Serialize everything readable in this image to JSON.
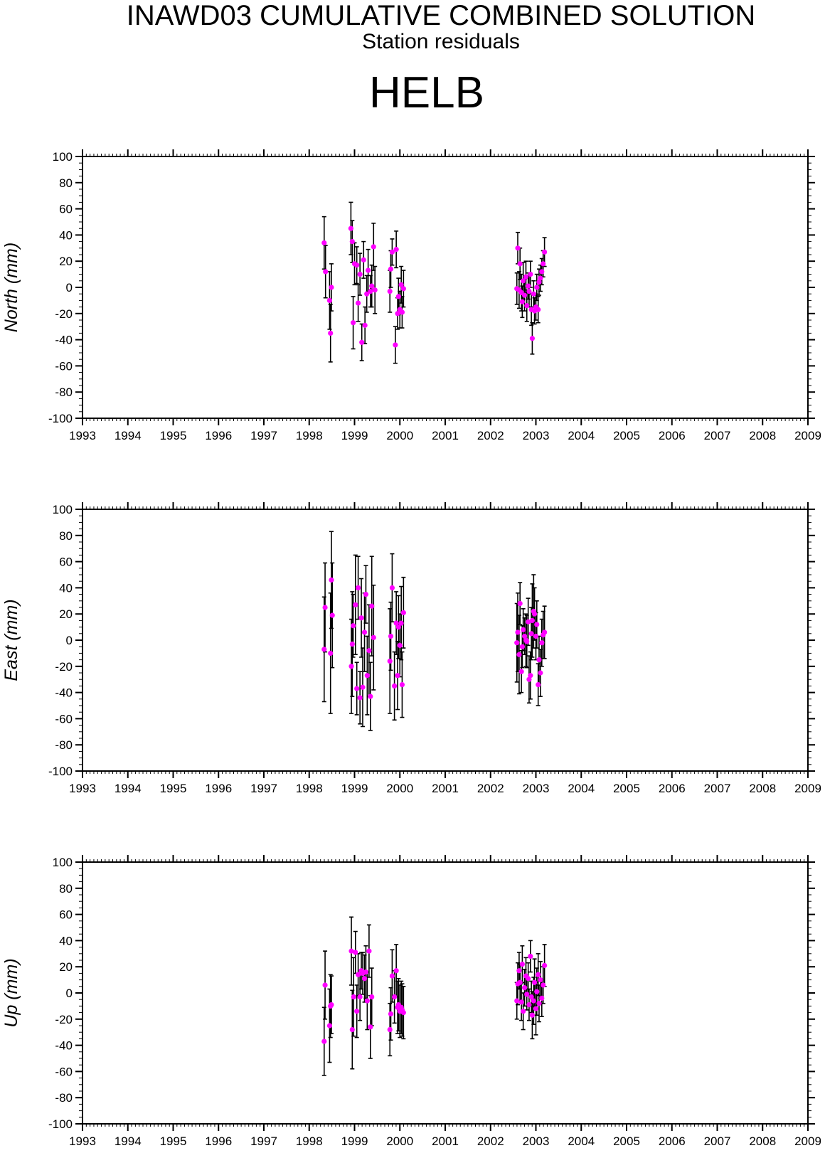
{
  "header": {
    "title": "INAWD03 CUMULATIVE COMBINED SOLUTION",
    "subtitle": "Station residuals",
    "station": "HELB"
  },
  "colors": {
    "point": "#ff00ff",
    "errorbar": "#000000",
    "axis": "#000000",
    "background": "#ffffff"
  },
  "chart_data": [
    {
      "type": "scatter",
      "ylabel": "North (mm)",
      "xlim": [
        1993,
        2009
      ],
      "ylim": [
        -100,
        100
      ],
      "x_ticks": [
        "1993",
        "1994",
        "1995",
        "1996",
        "1997",
        "1998",
        "1999",
        "2000",
        "2001",
        "2002",
        "2003",
        "2004",
        "2005",
        "2006",
        "2007",
        "2008",
        "2009"
      ],
      "y_ticks": [
        "100",
        "80",
        "60",
        "40",
        "20",
        "0",
        "-20",
        "-40",
        "-60",
        "-80",
        "-100"
      ],
      "grid": false,
      "points": [
        {
          "x": 1998.33,
          "y": 34,
          "err": 20
        },
        {
          "x": 1998.36,
          "y": 12,
          "err": 20
        },
        {
          "x": 1998.45,
          "y": -10,
          "err": 22
        },
        {
          "x": 1998.47,
          "y": -35,
          "err": 22
        },
        {
          "x": 1998.49,
          "y": 0,
          "err": 18
        },
        {
          "x": 1998.92,
          "y": 45,
          "err": 20
        },
        {
          "x": 1998.95,
          "y": 35,
          "err": 16
        },
        {
          "x": 1998.97,
          "y": -27,
          "err": 20
        },
        {
          "x": 1999.0,
          "y": 18,
          "err": 16
        },
        {
          "x": 1999.05,
          "y": 17,
          "err": 14
        },
        {
          "x": 1999.08,
          "y": -12,
          "err": 14
        },
        {
          "x": 1999.12,
          "y": 10,
          "err": 16
        },
        {
          "x": 1999.16,
          "y": -42,
          "err": 14
        },
        {
          "x": 1999.2,
          "y": 21,
          "err": 14
        },
        {
          "x": 1999.23,
          "y": -29,
          "err": 14
        },
        {
          "x": 1999.27,
          "y": -5,
          "err": 14
        },
        {
          "x": 1999.3,
          "y": 13,
          "err": 16
        },
        {
          "x": 1999.35,
          "y": -3,
          "err": 12
        },
        {
          "x": 1999.38,
          "y": 1,
          "err": 16
        },
        {
          "x": 1999.42,
          "y": 31,
          "err": 18
        },
        {
          "x": 1999.45,
          "y": -2,
          "err": 18
        },
        {
          "x": 1999.78,
          "y": -3,
          "err": 16
        },
        {
          "x": 1999.8,
          "y": 14,
          "err": 14
        },
        {
          "x": 1999.83,
          "y": 27,
          "err": 10
        },
        {
          "x": 1999.9,
          "y": -44,
          "err": 14
        },
        {
          "x": 1999.92,
          "y": 29,
          "err": 14
        },
        {
          "x": 1999.95,
          "y": -20,
          "err": 12
        },
        {
          "x": 1999.97,
          "y": -7,
          "err": 14
        },
        {
          "x": 2000.0,
          "y": -17,
          "err": 14
        },
        {
          "x": 2000.03,
          "y": 2,
          "err": 14
        },
        {
          "x": 2000.05,
          "y": -19,
          "err": 12
        },
        {
          "x": 2000.08,
          "y": -1,
          "err": 14
        },
        {
          "x": 2002.58,
          "y": -1,
          "err": 12
        },
        {
          "x": 2002.6,
          "y": 30,
          "err": 12
        },
        {
          "x": 2002.63,
          "y": -2,
          "err": 14
        },
        {
          "x": 2002.65,
          "y": 18,
          "err": 12
        },
        {
          "x": 2002.68,
          "y": -4,
          "err": 14
        },
        {
          "x": 2002.7,
          "y": -11,
          "err": 12
        },
        {
          "x": 2002.72,
          "y": 5,
          "err": 14
        },
        {
          "x": 2002.75,
          "y": -6,
          "err": 12
        },
        {
          "x": 2002.78,
          "y": 8,
          "err": 12
        },
        {
          "x": 2002.8,
          "y": -14,
          "err": 12
        },
        {
          "x": 2002.83,
          "y": 1,
          "err": 10
        },
        {
          "x": 2002.85,
          "y": -3,
          "err": 12
        },
        {
          "x": 2002.88,
          "y": 10,
          "err": 10
        },
        {
          "x": 2002.9,
          "y": -17,
          "err": 12
        },
        {
          "x": 2002.92,
          "y": -39,
          "err": 12
        },
        {
          "x": 2002.95,
          "y": -5,
          "err": 10
        },
        {
          "x": 2002.97,
          "y": -18,
          "err": 10
        },
        {
          "x": 2003.0,
          "y": -15,
          "err": 10
        },
        {
          "x": 2003.02,
          "y": 0,
          "err": 10
        },
        {
          "x": 2003.05,
          "y": -17,
          "err": 10
        },
        {
          "x": 2003.07,
          "y": 4,
          "err": 10
        },
        {
          "x": 2003.1,
          "y": 7,
          "err": 10
        },
        {
          "x": 2003.13,
          "y": 12,
          "err": 10
        },
        {
          "x": 2003.16,
          "y": 18,
          "err": 10
        },
        {
          "x": 2003.19,
          "y": 27,
          "err": 11
        }
      ]
    },
    {
      "type": "scatter",
      "ylabel": "East (mm)",
      "xlim": [
        1993,
        2009
      ],
      "ylim": [
        -100,
        100
      ],
      "x_ticks": [
        "1993",
        "1994",
        "1995",
        "1996",
        "1997",
        "1998",
        "1999",
        "2000",
        "2001",
        "2002",
        "2003",
        "2004",
        "2005",
        "2006",
        "2007",
        "2008",
        "2009"
      ],
      "y_ticks": [
        "100",
        "80",
        "60",
        "40",
        "20",
        "0",
        "-20",
        "-40",
        "-60",
        "-80",
        "-100"
      ],
      "grid": false,
      "points": [
        {
          "x": 1998.33,
          "y": -7,
          "err": 40
        },
        {
          "x": 1998.35,
          "y": 25,
          "err": 34
        },
        {
          "x": 1998.47,
          "y": -10,
          "err": 46
        },
        {
          "x": 1998.49,
          "y": 46,
          "err": 37
        },
        {
          "x": 1998.51,
          "y": 19,
          "err": 40
        },
        {
          "x": 1998.93,
          "y": -20,
          "err": 36
        },
        {
          "x": 1998.95,
          "y": -3,
          "err": 40
        },
        {
          "x": 1998.97,
          "y": 11,
          "err": 24
        },
        {
          "x": 1999.02,
          "y": 27,
          "err": 38
        },
        {
          "x": 1999.05,
          "y": -37,
          "err": 20
        },
        {
          "x": 1999.08,
          "y": 40,
          "err": 24
        },
        {
          "x": 1999.12,
          "y": -44,
          "err": 20
        },
        {
          "x": 1999.15,
          "y": 17,
          "err": 30
        },
        {
          "x": 1999.18,
          "y": -36,
          "err": 30
        },
        {
          "x": 1999.22,
          "y": 6,
          "err": 30
        },
        {
          "x": 1999.25,
          "y": 35,
          "err": 22
        },
        {
          "x": 1999.28,
          "y": -27,
          "err": 30
        },
        {
          "x": 1999.32,
          "y": -8,
          "err": 35
        },
        {
          "x": 1999.35,
          "y": -43,
          "err": 26
        },
        {
          "x": 1999.38,
          "y": 26,
          "err": 38
        },
        {
          "x": 1999.42,
          "y": 2,
          "err": 40
        },
        {
          "x": 1999.78,
          "y": -16,
          "err": 40
        },
        {
          "x": 1999.8,
          "y": 3,
          "err": 26
        },
        {
          "x": 1999.83,
          "y": 40,
          "err": 26
        },
        {
          "x": 1999.88,
          "y": -35,
          "err": 26
        },
        {
          "x": 1999.92,
          "y": 13,
          "err": 24
        },
        {
          "x": 1999.95,
          "y": -27,
          "err": 26
        },
        {
          "x": 1999.97,
          "y": 10,
          "err": 24
        },
        {
          "x": 2000.0,
          "y": -4,
          "err": 24
        },
        {
          "x": 2000.03,
          "y": 13,
          "err": 28
        },
        {
          "x": 2000.05,
          "y": -34,
          "err": 25
        },
        {
          "x": 2000.08,
          "y": 21,
          "err": 27
        },
        {
          "x": 2002.58,
          "y": -2,
          "err": 30
        },
        {
          "x": 2002.6,
          "y": 6,
          "err": 30
        },
        {
          "x": 2002.63,
          "y": -11,
          "err": 30
        },
        {
          "x": 2002.65,
          "y": 28,
          "err": 16
        },
        {
          "x": 2002.68,
          "y": -24,
          "err": 16
        },
        {
          "x": 2002.7,
          "y": -5,
          "err": 16
        },
        {
          "x": 2002.72,
          "y": 8,
          "err": 16
        },
        {
          "x": 2002.75,
          "y": 3,
          "err": 14
        },
        {
          "x": 2002.78,
          "y": 0,
          "err": 20
        },
        {
          "x": 2002.8,
          "y": -1,
          "err": 20
        },
        {
          "x": 2002.83,
          "y": 14,
          "err": 18
        },
        {
          "x": 2002.85,
          "y": -30,
          "err": 18
        },
        {
          "x": 2002.88,
          "y": -27,
          "err": 18
        },
        {
          "x": 2002.9,
          "y": 5,
          "err": 20
        },
        {
          "x": 2002.92,
          "y": 15,
          "err": 28
        },
        {
          "x": 2002.95,
          "y": 22,
          "err": 28
        },
        {
          "x": 2002.97,
          "y": 20,
          "err": 20
        },
        {
          "x": 2003.0,
          "y": 3,
          "err": 18
        },
        {
          "x": 2003.02,
          "y": 12,
          "err": 18
        },
        {
          "x": 2003.05,
          "y": -34,
          "err": 16
        },
        {
          "x": 2003.07,
          "y": -15,
          "err": 18
        },
        {
          "x": 2003.1,
          "y": -25,
          "err": 18
        },
        {
          "x": 2003.13,
          "y": -2,
          "err": 18
        },
        {
          "x": 2003.16,
          "y": 4,
          "err": 18
        },
        {
          "x": 2003.19,
          "y": 6,
          "err": 20
        }
      ]
    },
    {
      "type": "scatter",
      "ylabel": "Up (mm)",
      "xlim": [
        1993,
        2009
      ],
      "ylim": [
        -100,
        100
      ],
      "x_ticks": [
        "1993",
        "1994",
        "1995",
        "1996",
        "1997",
        "1998",
        "1999",
        "2000",
        "2001",
        "2002",
        "2003",
        "2004",
        "2005",
        "2006",
        "2007",
        "2008",
        "2009"
      ],
      "y_ticks": [
        "100",
        "80",
        "60",
        "40",
        "20",
        "0",
        "-20",
        "-40",
        "-60",
        "-80",
        "-100"
      ],
      "grid": false,
      "points": [
        {
          "x": 1998.33,
          "y": -37,
          "err": 26
        },
        {
          "x": 1998.35,
          "y": 6,
          "err": 26
        },
        {
          "x": 1998.45,
          "y": -25,
          "err": 28
        },
        {
          "x": 1998.47,
          "y": -10,
          "err": 24
        },
        {
          "x": 1998.49,
          "y": -9,
          "err": 22
        },
        {
          "x": 1998.93,
          "y": 32,
          "err": 26
        },
        {
          "x": 1998.95,
          "y": -28,
          "err": 30
        },
        {
          "x": 1998.98,
          "y": -3,
          "err": 30
        },
        {
          "x": 1999.02,
          "y": 31,
          "err": 16
        },
        {
          "x": 1999.05,
          "y": -14,
          "err": 20
        },
        {
          "x": 1999.08,
          "y": 14,
          "err": 16
        },
        {
          "x": 1999.12,
          "y": -3,
          "err": 18
        },
        {
          "x": 1999.15,
          "y": 17,
          "err": 14
        },
        {
          "x": 1999.18,
          "y": 15,
          "err": 16
        },
        {
          "x": 1999.22,
          "y": 11,
          "err": 18
        },
        {
          "x": 1999.25,
          "y": 16,
          "err": 20
        },
        {
          "x": 1999.28,
          "y": -6,
          "err": 22
        },
        {
          "x": 1999.32,
          "y": 32,
          "err": 20
        },
        {
          "x": 1999.35,
          "y": -26,
          "err": 24
        },
        {
          "x": 1999.38,
          "y": -3,
          "err": 22
        },
        {
          "x": 1999.78,
          "y": -28,
          "err": 20
        },
        {
          "x": 1999.8,
          "y": -16,
          "err": 20
        },
        {
          "x": 1999.83,
          "y": 13,
          "err": 20
        },
        {
          "x": 1999.88,
          "y": -3,
          "err": 20
        },
        {
          "x": 1999.92,
          "y": 17,
          "err": 20
        },
        {
          "x": 1999.95,
          "y": -11,
          "err": 20
        },
        {
          "x": 1999.97,
          "y": -9,
          "err": 20
        },
        {
          "x": 2000.0,
          "y": -14,
          "err": 20
        },
        {
          "x": 2000.03,
          "y": -11,
          "err": 20
        },
        {
          "x": 2000.05,
          "y": -13,
          "err": 20
        },
        {
          "x": 2000.08,
          "y": -15,
          "err": 20
        },
        {
          "x": 2002.58,
          "y": -6,
          "err": 14
        },
        {
          "x": 2002.6,
          "y": 7,
          "err": 16
        },
        {
          "x": 2002.63,
          "y": 17,
          "err": 14
        },
        {
          "x": 2002.65,
          "y": 8,
          "err": 14
        },
        {
          "x": 2002.68,
          "y": -7,
          "err": 14
        },
        {
          "x": 2002.7,
          "y": 22,
          "err": 14
        },
        {
          "x": 2002.72,
          "y": -14,
          "err": 14
        },
        {
          "x": 2002.75,
          "y": 4,
          "err": 14
        },
        {
          "x": 2002.78,
          "y": 13,
          "err": 14
        },
        {
          "x": 2002.8,
          "y": -1,
          "err": 12
        },
        {
          "x": 2002.83,
          "y": 11,
          "err": 12
        },
        {
          "x": 2002.85,
          "y": -9,
          "err": 12
        },
        {
          "x": 2002.88,
          "y": 28,
          "err": 12
        },
        {
          "x": 2002.9,
          "y": -3,
          "err": 12
        },
        {
          "x": 2002.92,
          "y": -17,
          "err": 18
        },
        {
          "x": 2002.95,
          "y": -6,
          "err": 18
        },
        {
          "x": 2002.97,
          "y": 8,
          "err": 18
        },
        {
          "x": 2003.0,
          "y": -12,
          "err": 20
        },
        {
          "x": 2003.02,
          "y": 1,
          "err": 18
        },
        {
          "x": 2003.05,
          "y": 14,
          "err": 16
        },
        {
          "x": 2003.07,
          "y": -8,
          "err": 14
        },
        {
          "x": 2003.1,
          "y": 10,
          "err": 14
        },
        {
          "x": 2003.13,
          "y": -4,
          "err": 14
        },
        {
          "x": 2003.16,
          "y": 6,
          "err": 14
        },
        {
          "x": 2003.19,
          "y": 21,
          "err": 16
        }
      ]
    }
  ]
}
